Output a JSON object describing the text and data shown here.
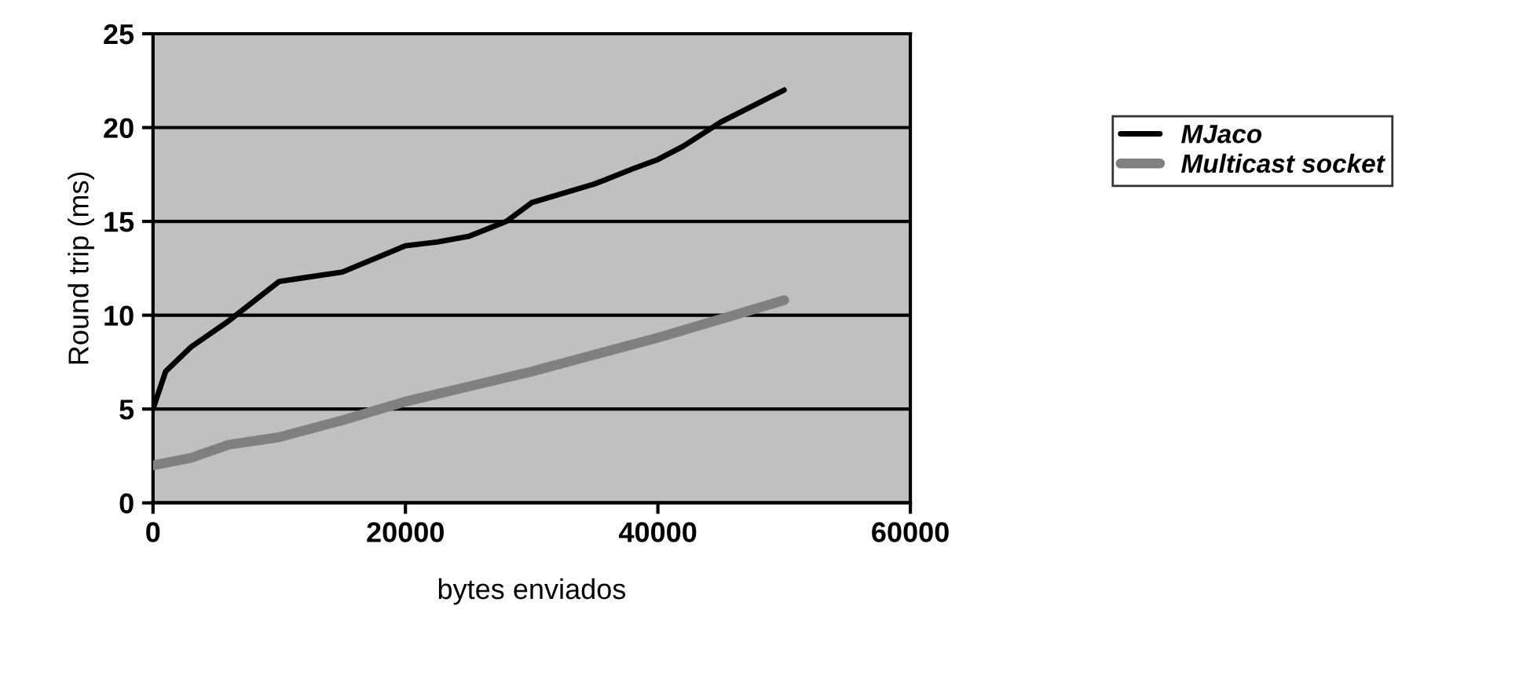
{
  "chart_data": {
    "type": "line",
    "xlabel": "bytes enviados",
    "ylabel": "Round trip (ms)",
    "xlim": [
      0,
      60000
    ],
    "xticks": [
      0,
      20000,
      40000,
      60000
    ],
    "ylim": [
      0,
      25
    ],
    "yticks": [
      0,
      5,
      10,
      15,
      20,
      25
    ],
    "grid": "y",
    "legend": "right",
    "marker": "none",
    "line_style": "solid",
    "series": [
      {
        "name": "MJaco",
        "color": "#000000",
        "x": [
          0,
          1000,
          3000,
          6000,
          10000,
          12000,
          15000,
          20000,
          22500,
          25000,
          28000,
          30000,
          35000,
          38000,
          40000,
          42000,
          45000,
          50000
        ],
        "values": [
          5,
          7,
          8.3,
          9.7,
          11.8,
          12,
          12.3,
          13.7,
          13.9,
          14.2,
          15,
          16,
          17,
          17.8,
          18.3,
          19,
          20.3,
          22
        ]
      },
      {
        "name": "Multicast socket",
        "color": "#808080",
        "x": [
          0,
          3000,
          6000,
          10000,
          15000,
          20000,
          25000,
          30000,
          35000,
          40000,
          45000,
          50000
        ],
        "values": [
          2,
          2.4,
          3.1,
          3.5,
          4.4,
          5.4,
          6.2,
          7,
          7.9,
          8.8,
          9.8,
          10.8
        ]
      }
    ]
  }
}
